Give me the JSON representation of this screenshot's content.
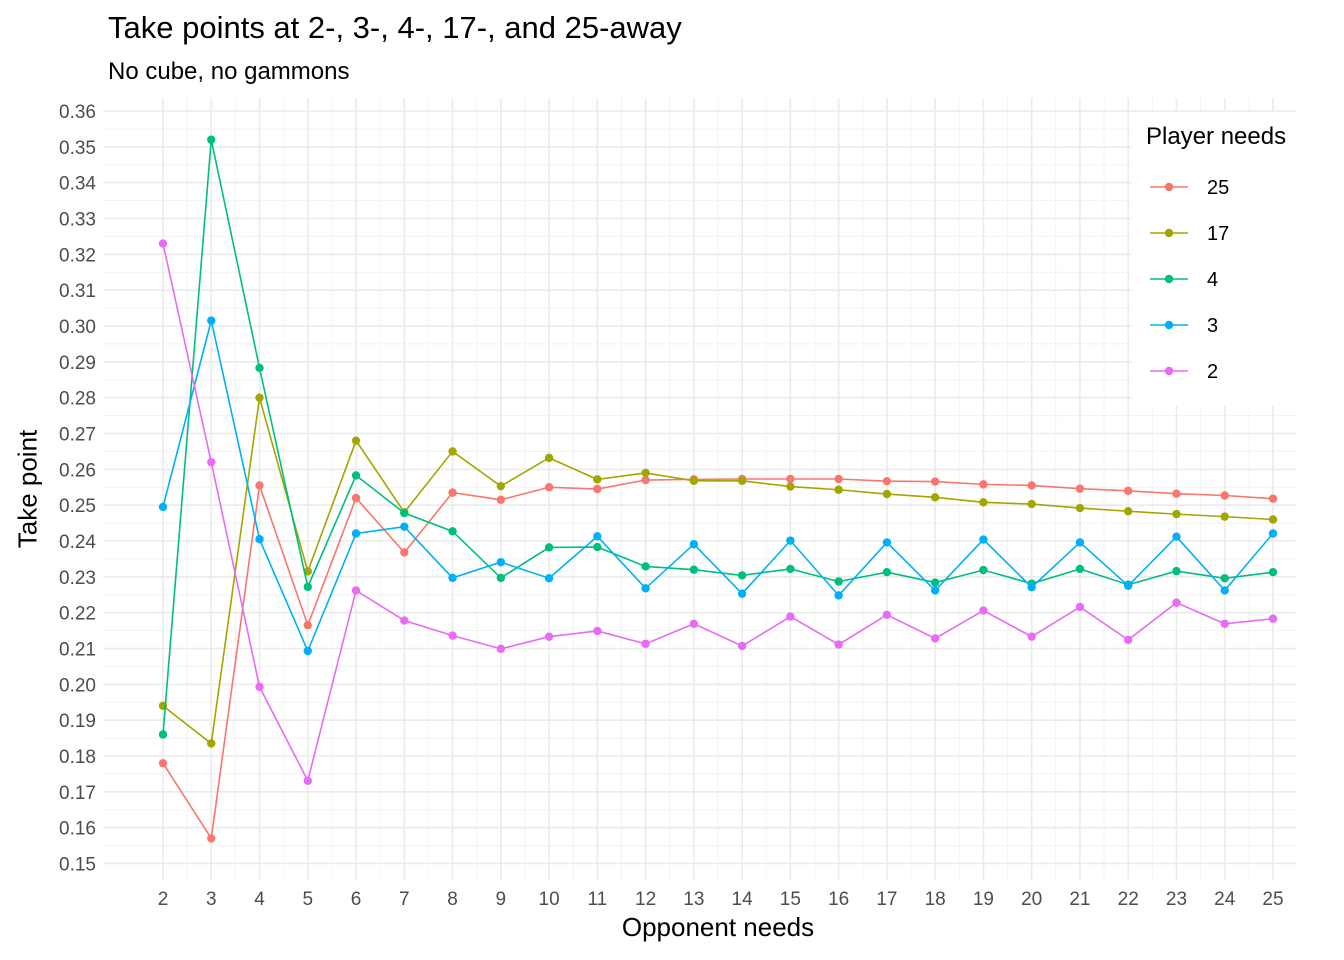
{
  "chart_data": {
    "type": "line",
    "title": "Take points at 2-, 3-, 4-, 17-, and 25-away",
    "subtitle": "No cube, no gammons",
    "xlabel": "Opponent needs",
    "ylabel": "Take point",
    "x": [
      2,
      3,
      4,
      5,
      6,
      7,
      8,
      9,
      10,
      11,
      12,
      13,
      14,
      15,
      16,
      17,
      18,
      19,
      20,
      21,
      22,
      23,
      24,
      25
    ],
    "ylim": [
      0.15,
      0.36
    ],
    "yticks": [
      "0.15",
      "0.16",
      "0.17",
      "0.18",
      "0.19",
      "0.20",
      "0.21",
      "0.22",
      "0.23",
      "0.24",
      "0.25",
      "0.26",
      "0.27",
      "0.28",
      "0.29",
      "0.30",
      "0.31",
      "0.32",
      "0.33",
      "0.34",
      "0.35",
      "0.36"
    ],
    "grid": true,
    "legend_title": "Player needs",
    "legend_position": "top-right",
    "series": [
      {
        "name": "25",
        "color": "#F8766D",
        "values": [
          0.178,
          0.157,
          0.2555,
          0.2165,
          0.252,
          0.2368,
          0.2535,
          0.2515,
          0.255,
          0.2545,
          0.257,
          0.2572,
          0.2573,
          0.2573,
          0.2573,
          0.2567,
          0.2566,
          0.2558,
          0.2555,
          0.2546,
          0.254,
          0.2532,
          0.2527,
          0.2518
        ]
      },
      {
        "name": "17",
        "color": "#A3A500",
        "values": [
          0.194,
          0.1835,
          0.28,
          0.2315,
          0.268,
          0.248,
          0.265,
          0.2553,
          0.2632,
          0.2572,
          0.259,
          0.2568,
          0.2568,
          0.2552,
          0.2543,
          0.2531,
          0.2522,
          0.2508,
          0.2503,
          0.2492,
          0.2483,
          0.2475,
          0.2468,
          0.246
        ]
      },
      {
        "name": "4",
        "color": "#00BF7D",
        "values": [
          0.186,
          0.352,
          0.2883,
          0.2272,
          0.2583,
          0.2478,
          0.2427,
          0.2297,
          0.2382,
          0.2383,
          0.2329,
          0.232,
          0.2304,
          0.2322,
          0.2287,
          0.2313,
          0.2284,
          0.2319,
          0.2281,
          0.2322,
          0.2278,
          0.2316,
          0.2296,
          0.2313
        ]
      },
      {
        "name": "3",
        "color": "#00B0F6",
        "values": [
          0.2495,
          0.3015,
          0.2405,
          0.2093,
          0.2421,
          0.244,
          0.2297,
          0.2341,
          0.2296,
          0.2413,
          0.2268,
          0.2391,
          0.2253,
          0.2401,
          0.2248,
          0.2396,
          0.2262,
          0.2404,
          0.2271,
          0.2396,
          0.2275,
          0.2412,
          0.2262,
          0.2421
        ]
      },
      {
        "name": "2",
        "color": "#E76BF3",
        "values": [
          0.323,
          0.262,
          0.1993,
          0.1731,
          0.2262,
          0.2178,
          0.2136,
          0.2099,
          0.2133,
          0.2149,
          0.2113,
          0.2169,
          0.2107,
          0.2189,
          0.2111,
          0.2194,
          0.2128,
          0.2206,
          0.2133,
          0.2216,
          0.2124,
          0.2228,
          0.2169,
          0.2183
        ]
      }
    ]
  }
}
